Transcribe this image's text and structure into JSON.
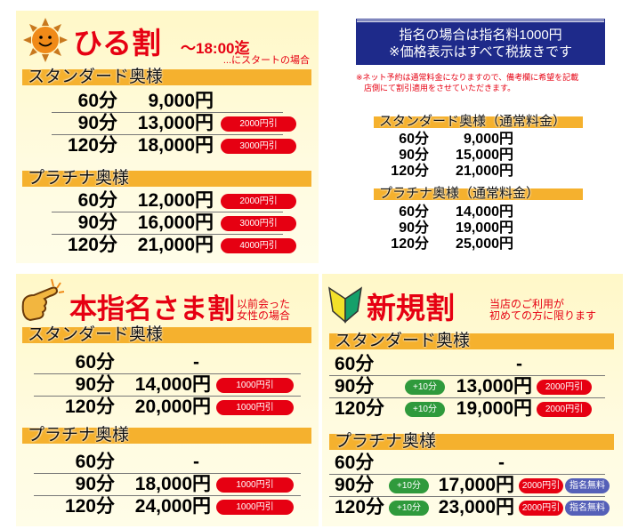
{
  "colors": {
    "title": "#e60012",
    "bar": "#f5b12e",
    "badge_red": "#e60012",
    "badge_green": "#2f9a3c",
    "badge_blue": "#5560b8",
    "notice_box": "#1e2a8a"
  },
  "hiru": {
    "icon": "sun-icon",
    "title": "ひる割",
    "time": "～18:00迄",
    "note": "...にスタートの場合",
    "sections": [
      {
        "label": "スタンダード奥様",
        "rows": [
          {
            "dur": "60分",
            "price": "9,000円"
          },
          {
            "dur": "90分",
            "price": "13,000円",
            "badges": [
              "2000円引"
            ]
          },
          {
            "dur": "120分",
            "price": "18,000円",
            "badges": [
              "3000円引"
            ]
          }
        ]
      },
      {
        "label": "プラチナ奥様",
        "rows": [
          {
            "dur": "60分",
            "price": "12,000円",
            "badges": [
              "2000円引"
            ]
          },
          {
            "dur": "90分",
            "price": "16,000円",
            "badges": [
              "3000円引"
            ]
          },
          {
            "dur": "120分",
            "price": "21,000円",
            "badges": [
              "4000円引"
            ]
          }
        ]
      }
    ]
  },
  "info": {
    "notice_line1": "指名の場合は指名料1000円",
    "notice_line2": "※価格表示はすべて税抜きです",
    "net_note_line1": "※ネット予約は通常料金になりますので、備考欄に希望を記載",
    "net_note_line2": "店側にて割引適用をさせていただきます。",
    "sections": [
      {
        "label": "スタンダード奥様（通常料金）",
        "rows": [
          {
            "dur": "60分",
            "price": "9,000円"
          },
          {
            "dur": "90分",
            "price": "15,000円"
          },
          {
            "dur": "120分",
            "price": "21,000円"
          }
        ]
      },
      {
        "label": "プラチナ奥様（通常料金）",
        "rows": [
          {
            "dur": "60分",
            "price": "14,000円"
          },
          {
            "dur": "90分",
            "price": "19,000円"
          },
          {
            "dur": "120分",
            "price": "25,000円"
          }
        ]
      }
    ]
  },
  "honshimei": {
    "icon": "pointing-hand-icon",
    "title": "本指名さま割",
    "note_line1": "以前会った",
    "note_line2": "女性の場合",
    "sections": [
      {
        "label": "スタンダード奥様",
        "rows": [
          {
            "dur": "60分",
            "price": "-"
          },
          {
            "dur": "90分",
            "price": "14,000円",
            "badges": [
              "1000円引"
            ]
          },
          {
            "dur": "120分",
            "price": "20,000円",
            "badges": [
              "1000円引"
            ]
          }
        ]
      },
      {
        "label": "プラチナ奥様",
        "rows": [
          {
            "dur": "60分",
            "price": "-"
          },
          {
            "dur": "90分",
            "price": "18,000円",
            "badges": [
              "1000円引"
            ]
          },
          {
            "dur": "120分",
            "price": "24,000円",
            "badges": [
              "1000円引"
            ]
          }
        ]
      }
    ]
  },
  "shinki": {
    "icon": "beginner-mark-icon",
    "title": "新規割",
    "note_line1": "当店のご利用が",
    "note_line2": "初めての方に限ります",
    "sections": [
      {
        "label": "スタンダード奥様",
        "rows": [
          {
            "dur": "60分",
            "price": "-"
          },
          {
            "dur": "90分",
            "extra": "+10分",
            "price": "13,000円",
            "badges": [
              "2000円引"
            ]
          },
          {
            "dur": "120分",
            "extra": "+10分",
            "price": "19,000円",
            "badges": [
              "2000円引"
            ]
          }
        ]
      },
      {
        "label": "プラチナ奥様",
        "rows": [
          {
            "dur": "60分",
            "price": "-"
          },
          {
            "dur": "90分",
            "extra": "+10分",
            "price": "17,000円",
            "badges": [
              "2000円引",
              "指名無料"
            ]
          },
          {
            "dur": "120分",
            "extra": "+10分",
            "price": "23,000円",
            "badges": [
              "2000円引",
              "指名無料"
            ]
          }
        ]
      }
    ]
  }
}
